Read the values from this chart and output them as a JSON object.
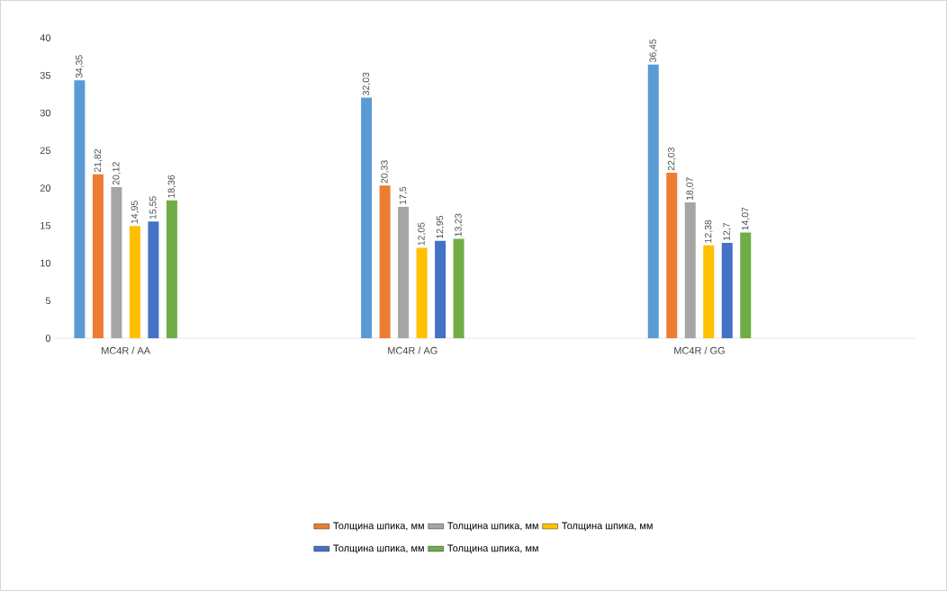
{
  "chart_data": {
    "type": "bar",
    "categories": [
      "MC4R / AA",
      null,
      "MC4R / AG",
      null,
      "MC4R / GG",
      null
    ],
    "series": [
      {
        "color": "#5b9bd5",
        "values": [
          34.35,
          null,
          32.03,
          null,
          36.45,
          null
        ],
        "value_labels": [
          "34,35",
          null,
          "32,03",
          null,
          "36,45",
          null
        ]
      },
      {
        "name": "Толщина шпика, мм",
        "color": "#ed7d31",
        "values": [
          21.82,
          null,
          20.33,
          null,
          22.03,
          null
        ],
        "value_labels": [
          "21,82",
          null,
          "20,33",
          null,
          "22,03",
          null
        ]
      },
      {
        "name": "Толщина шпика, мм",
        "color": "#a5a5a5",
        "values": [
          20.12,
          null,
          17.5,
          null,
          18.07,
          null
        ],
        "value_labels": [
          "20,12",
          null,
          "17,5",
          null,
          "18,07",
          null
        ]
      },
      {
        "name": "Толщина шпика, мм",
        "color": "#ffc000",
        "values": [
          14.95,
          null,
          12.05,
          null,
          12.38,
          null
        ],
        "value_labels": [
          "14,95",
          null,
          "12,05",
          null,
          "12,38",
          null
        ]
      },
      {
        "name": "Толщина шпика, мм",
        "color": "#4472c4",
        "values": [
          15.55,
          null,
          12.95,
          null,
          12.7,
          null
        ],
        "value_labels": [
          "15,55",
          null,
          "12,95",
          null,
          "12,7",
          null
        ]
      },
      {
        "name": "Толщина шпика, мм",
        "color": "#70ad47",
        "values": [
          18.36,
          null,
          13.23,
          null,
          14.07,
          null
        ],
        "value_labels": [
          "18,36",
          null,
          "13,23",
          null,
          "14,07",
          null
        ]
      }
    ],
    "ylim": [
      0,
      40
    ],
    "yticks": [
      0,
      5,
      10,
      15,
      20,
      25,
      30,
      35,
      40
    ],
    "legend": "bottom",
    "grid": false
  }
}
